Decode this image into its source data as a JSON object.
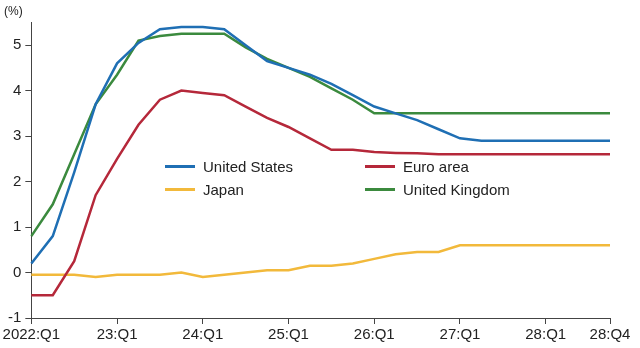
{
  "chart_data": {
    "type": "line",
    "y_label": "(%)",
    "categories": [
      "2022:Q1",
      null,
      null,
      null,
      "23:Q1",
      null,
      null,
      null,
      "24:Q1",
      null,
      null,
      null,
      "25:Q1",
      null,
      null,
      null,
      "26:Q1",
      null,
      null,
      null,
      "27:Q1",
      null,
      null,
      null,
      "28:Q1",
      null,
      null,
      "28:Q4"
    ],
    "series": [
      {
        "name": "United States",
        "color": "#1f6fb4",
        "values": [
          0.2,
          0.8,
          2.2,
          3.7,
          4.6,
          5.05,
          5.35,
          5.4,
          5.4,
          5.35,
          5.0,
          4.65,
          4.5,
          4.35,
          4.15,
          3.9,
          3.65,
          3.5,
          3.35,
          3.15,
          2.95,
          2.9,
          2.9,
          2.9,
          2.9,
          2.9,
          2.9,
          2.9
        ]
      },
      {
        "name": "Euro area",
        "color": "#b5283a",
        "values": [
          -0.5,
          -0.5,
          0.25,
          1.7,
          2.5,
          3.25,
          3.8,
          4.0,
          3.95,
          3.9,
          3.65,
          3.4,
          3.2,
          2.95,
          2.7,
          2.7,
          2.65,
          2.63,
          2.62,
          2.6,
          2.6,
          2.6,
          2.6,
          2.6,
          2.6,
          2.6,
          2.6,
          2.6
        ]
      },
      {
        "name": "Japan",
        "color": "#f2b93b",
        "values": [
          -0.05,
          -0.05,
          -0.05,
          -0.1,
          -0.05,
          -0.05,
          -0.05,
          0.0,
          -0.1,
          -0.05,
          0.0,
          0.05,
          0.05,
          0.15,
          0.15,
          0.2,
          0.3,
          0.4,
          0.45,
          0.45,
          0.6,
          0.6,
          0.6,
          0.6,
          0.6,
          0.6,
          0.6,
          0.6
        ]
      },
      {
        "name": "United Kingdom",
        "color": "#3b8a3e",
        "values": [
          0.8,
          1.5,
          2.6,
          3.7,
          4.35,
          5.1,
          5.2,
          5.25,
          5.25,
          5.25,
          4.95,
          4.7,
          4.5,
          4.3,
          4.05,
          3.8,
          3.5,
          3.5,
          3.5,
          3.5,
          3.5,
          3.5,
          3.5,
          3.5,
          3.5,
          3.5,
          3.5,
          3.5
        ]
      }
    ],
    "ylim": [
      -1,
      5.5
    ],
    "yticks": [
      -1,
      0,
      1,
      2,
      3,
      4,
      5
    ],
    "grid": false,
    "legend": "center"
  }
}
